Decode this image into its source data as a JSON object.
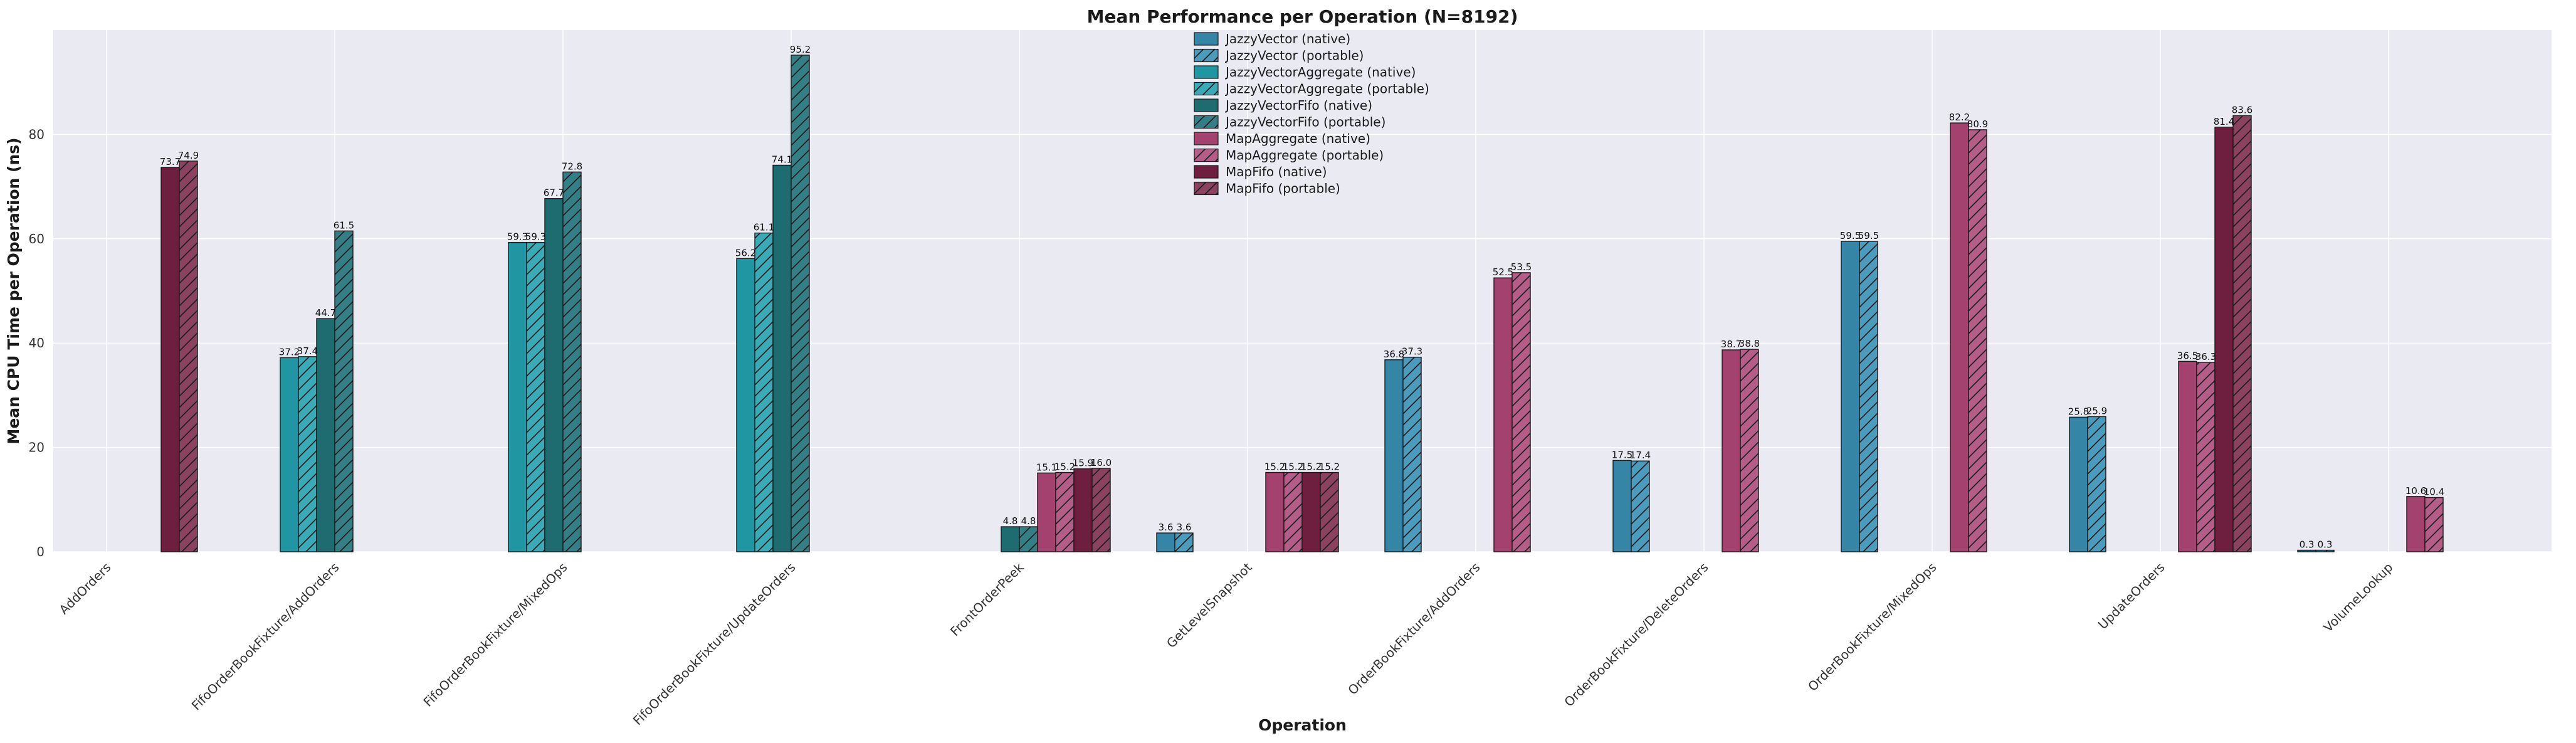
{
  "chart_data": {
    "type": "bar",
    "title": "Mean Performance per Operation (N=8192)",
    "xlabel": "Operation",
    "ylabel": "Mean CPU Time per Operation (ns)",
    "ylim": [
      0,
      100
    ],
    "yticks": [
      0,
      20,
      40,
      60,
      80
    ],
    "grid": true,
    "legend_position": "top-center",
    "categories": [
      "AddOrders",
      "FifoOrderBookFixture/AddOrders",
      "FifoOrderBookFixture/MixedOps",
      "FifoOrderBookFixture/UpdateOrders",
      "FrontOrderPeek",
      "GetLevelSnapshot",
      "OrderBookFixture/AddOrders",
      "OrderBookFixture/DeleteOrders",
      "OrderBookFixture/MixedOps",
      "UpdateOrders",
      "VolumeLookup"
    ],
    "series": [
      {
        "name": "JazzyVector (native)",
        "color": "#3585a6",
        "hatch": false,
        "values": [
          null,
          null,
          null,
          null,
          null,
          3.6,
          36.8,
          17.5,
          59.5,
          25.8,
          0.3
        ]
      },
      {
        "name": "JazzyVector (portable)",
        "color": "#4b9bbd",
        "hatch": true,
        "values": [
          null,
          null,
          null,
          null,
          null,
          3.6,
          37.3,
          17.4,
          59.5,
          25.9,
          0.3
        ]
      },
      {
        "name": "JazzyVectorAggregate (native)",
        "color": "#2196a3",
        "hatch": false,
        "values": [
          null,
          37.2,
          59.3,
          56.2,
          null,
          null,
          null,
          null,
          null,
          null,
          null
        ]
      },
      {
        "name": "JazzyVectorAggregate (portable)",
        "color": "#3aaab6",
        "hatch": true,
        "values": [
          null,
          37.4,
          59.3,
          61.1,
          null,
          null,
          null,
          null,
          null,
          null,
          null
        ]
      },
      {
        "name": "JazzyVectorFifo (native)",
        "color": "#1e6b70",
        "hatch": false,
        "values": [
          null,
          44.7,
          67.7,
          74.1,
          4.8,
          null,
          null,
          null,
          null,
          null,
          null
        ]
      },
      {
        "name": "JazzyVectorFifo (portable)",
        "color": "#347f85",
        "hatch": true,
        "values": [
          null,
          61.5,
          72.8,
          95.2,
          4.8,
          null,
          null,
          null,
          null,
          null,
          null
        ]
      },
      {
        "name": "MapAggregate (native)",
        "color": "#a3416f",
        "hatch": false,
        "values": [
          null,
          null,
          null,
          null,
          15.1,
          15.2,
          52.5,
          38.7,
          82.2,
          36.5,
          10.6
        ]
      },
      {
        "name": "MapAggregate (portable)",
        "color": "#b45d89",
        "hatch": true,
        "values": [
          null,
          null,
          null,
          null,
          15.2,
          15.2,
          53.5,
          38.8,
          80.9,
          36.3,
          10.4
        ]
      },
      {
        "name": "MapFifo (native)",
        "color": "#6e1f3f",
        "hatch": false,
        "values": [
          73.7,
          null,
          null,
          null,
          15.9,
          15.2,
          null,
          null,
          null,
          81.4,
          null
        ]
      },
      {
        "name": "MapFifo (portable)",
        "color": "#8a4260",
        "hatch": true,
        "values": [
          74.9,
          null,
          null,
          null,
          16.0,
          15.2,
          null,
          null,
          null,
          83.6,
          null
        ]
      }
    ]
  }
}
